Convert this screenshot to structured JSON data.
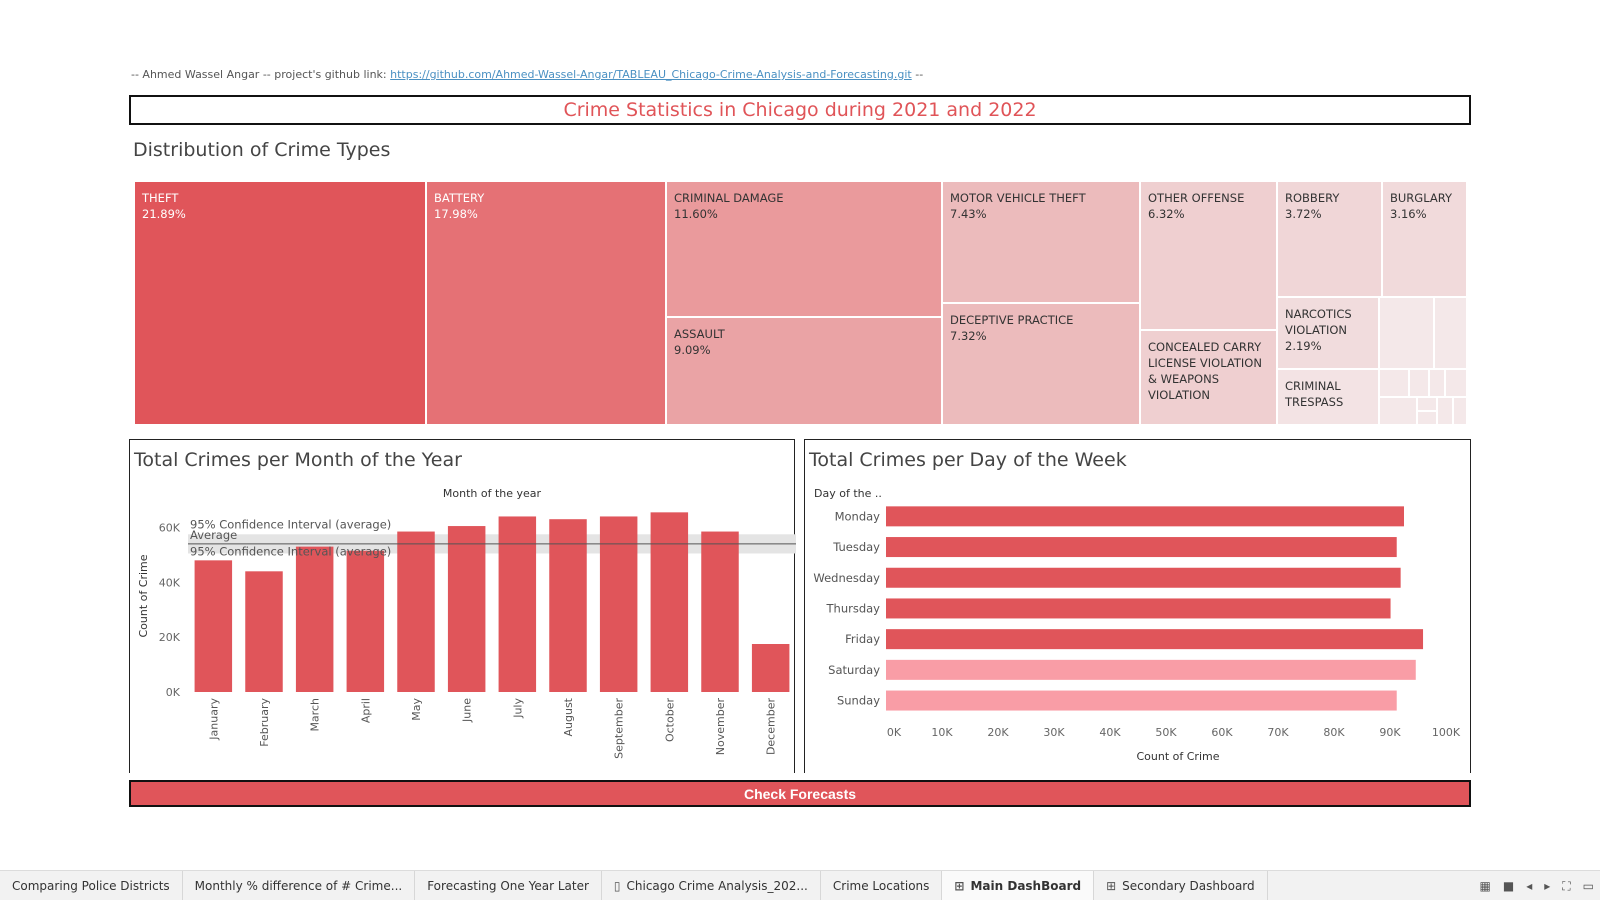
{
  "credit": {
    "prefix": "-- Ahmed Wassel Angar -- project's github link:",
    "link": "https://github.com/Ahmed-Wassel-Angar/TABLEAU_Chicago-Crime-Analysis-and-Forecasting.git",
    "suffix": "--"
  },
  "dashboard_title": "Crime Statistics in Chicago during 2021 and 2022",
  "treemap": {
    "title": "Distribution of Crime Types",
    "tiles": [
      {
        "name": "THEFT",
        "pct": "21.89%",
        "value": 21.89
      },
      {
        "name": "BATTERY",
        "pct": "17.98%",
        "value": 17.98
      },
      {
        "name": "CRIMINAL DAMAGE",
        "pct": "11.60%",
        "value": 11.6
      },
      {
        "name": "ASSAULT",
        "pct": "9.09%",
        "value": 9.09
      },
      {
        "name": "MOTOR VEHICLE THEFT",
        "pct": "7.43%",
        "value": 7.43
      },
      {
        "name": "DECEPTIVE PRACTICE",
        "pct": "7.32%",
        "value": 7.32
      },
      {
        "name": "OTHER OFFENSE",
        "pct": "6.32%",
        "value": 6.32
      },
      {
        "name": "CONCEALED CARRY LICENSE VIOLATION & WEAPONS VIOLATION",
        "pct": "",
        "value": null
      },
      {
        "name": "ROBBERY",
        "pct": "3.72%",
        "value": 3.72
      },
      {
        "name": "BURGLARY",
        "pct": "3.16%",
        "value": 3.16
      },
      {
        "name": "NARCOTICS VIOLATION",
        "pct": "2.19%",
        "value": 2.19
      },
      {
        "name": "CRIMINAL TRESPASS",
        "pct": "",
        "value": null
      }
    ]
  },
  "chart_data": [
    {
      "type": "bar",
      "title": "Total Crimes per Month of the Year",
      "xlabel": "Month of the year",
      "ylabel": "Count of Crime",
      "ylim": [
        0,
        60000
      ],
      "yticks": [
        "0K",
        "20K",
        "40K",
        "60K"
      ],
      "categories": [
        "January",
        "February",
        "March",
        "April",
        "May",
        "June",
        "July",
        "August",
        "September",
        "October",
        "November",
        "December"
      ],
      "values": [
        48000,
        44000,
        53000,
        51500,
        58500,
        60500,
        64000,
        63000,
        64000,
        65500,
        58500,
        17500
      ],
      "reference": {
        "average": 54000,
        "ci_low": 50500,
        "ci_high": 57500,
        "average_label": "Average",
        "ci_label_upper": "95% Confidence Interval (average)",
        "ci_label_lower": "95% Confidence Interval (average)"
      },
      "color": "#e0555a"
    },
    {
      "type": "bar",
      "orientation": "horizontal",
      "title": "Total Crimes per Day of the Week",
      "xlabel": "Count of Crime",
      "ylabel": "Day of the ..",
      "xlim": [
        0,
        100000
      ],
      "xticks": [
        "0K",
        "10K",
        "20K",
        "30K",
        "40K",
        "50K",
        "60K",
        "70K",
        "80K",
        "90K",
        "100K"
      ],
      "categories": [
        "Monday",
        "Tuesday",
        "Wednesday",
        "Thursday",
        "Friday",
        "Saturday",
        "Sunday"
      ],
      "values": [
        92500,
        91200,
        91900,
        90100,
        95900,
        94600,
        91200
      ],
      "colors": [
        "#e0555a",
        "#e0555a",
        "#e0555a",
        "#e0555a",
        "#e0555a",
        "#f99da6",
        "#f99da6"
      ]
    }
  ],
  "cta": {
    "label": "Check Forecasts"
  },
  "tabs": [
    {
      "label": "Comparing Police Districts",
      "icon": ""
    },
    {
      "label": "Monthly % difference of # Crime...",
      "icon": ""
    },
    {
      "label": "Forecasting One Year Later",
      "icon": ""
    },
    {
      "label": "Chicago Crime Analysis_202...",
      "icon": "story-icon"
    },
    {
      "label": "Crime Locations",
      "icon": ""
    },
    {
      "label": "Main DashBoard",
      "icon": "dashboard-icon",
      "active": true
    },
    {
      "label": "Secondary Dashboard",
      "icon": "dashboard-icon"
    }
  ],
  "colors": {
    "accent": "#e0555a",
    "light_accent": "#f99da6"
  }
}
